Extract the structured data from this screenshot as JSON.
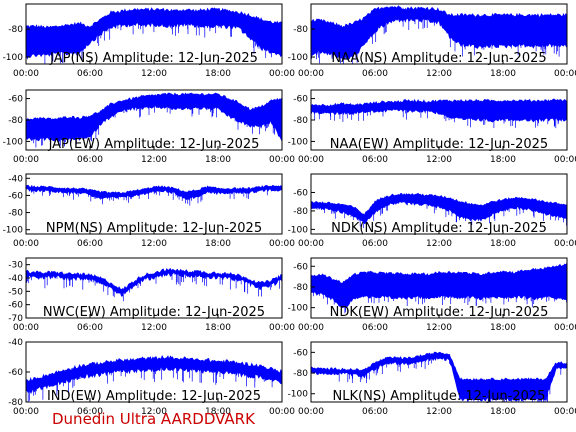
{
  "figure": {
    "footer": "Dunedin Ultra AARDDVARK",
    "colors": {
      "trace": "#0000ff",
      "axes": "#000000",
      "footer": "#cc0000"
    }
  },
  "chart_data": [
    {
      "type": "line",
      "title": "JAP(NS) Amplitude: 12-Jun-2025",
      "x_ticks": [
        "00:00",
        "06:00",
        "12:00",
        "18:00",
        "00:00"
      ],
      "y_ticks": [
        -80,
        -100
      ],
      "ylim": [
        -105,
        -62
      ],
      "series": [
        {
          "x_hours": [
            0,
            1,
            2,
            3,
            4,
            5,
            6,
            7,
            8,
            9,
            10,
            11,
            12,
            13,
            14,
            15,
            16,
            17,
            18,
            19,
            20,
            21,
            22,
            23,
            24
          ],
          "upper": [
            -78,
            -78,
            -79,
            -78,
            -77,
            -76,
            -78,
            -73,
            -68,
            -67,
            -66,
            -66,
            -66,
            -66,
            -67,
            -66,
            -67,
            -66,
            -66,
            -67,
            -68,
            -70,
            -73,
            -75,
            -76
          ],
          "lower": [
            -98,
            -97,
            -97,
            -96,
            -96,
            -95,
            -88,
            -82,
            -77,
            -76,
            -75,
            -76,
            -75,
            -76,
            -76,
            -75,
            -76,
            -77,
            -76,
            -77,
            -78,
            -85,
            -92,
            -95,
            -97
          ]
        }
      ]
    },
    {
      "type": "line",
      "title": "NAA(NS) Amplitude: 12-Jun-2025",
      "x_ticks": [
        "00:00",
        "06:00",
        "12:00",
        "18:00",
        "00:00"
      ],
      "y_ticks": [
        -80,
        -100
      ],
      "ylim": [
        -105,
        -62
      ],
      "series": [
        {
          "x_hours": [
            0,
            1,
            2,
            3,
            4,
            5,
            6,
            7,
            8,
            9,
            10,
            11,
            12,
            13,
            14,
            15,
            16,
            17,
            18,
            19,
            20,
            21,
            22,
            23,
            24
          ],
          "upper": [
            -74,
            -74,
            -76,
            -78,
            -76,
            -72,
            -66,
            -64,
            -64,
            -65,
            -65,
            -65,
            -66,
            -70,
            -70,
            -70,
            -70,
            -70,
            -70,
            -70,
            -70,
            -70,
            -70,
            -70,
            -70
          ],
          "lower": [
            -96,
            -95,
            -96,
            -100,
            -98,
            -90,
            -80,
            -75,
            -72,
            -72,
            -72,
            -73,
            -74,
            -84,
            -90,
            -90,
            -92,
            -90,
            -91,
            -90,
            -90,
            -91,
            -90,
            -90,
            -91
          ]
        }
      ]
    },
    {
      "type": "line",
      "title": "JAP(EW) Amplitude: 12-Jun-2025",
      "x_ticks": [
        "00:00",
        "06:00",
        "12:00",
        "18:00",
        "00:00"
      ],
      "y_ticks": [
        -60,
        -80,
        -100
      ],
      "ylim": [
        -108,
        -52
      ],
      "series": [
        {
          "x_hours": [
            0,
            1,
            2,
            3,
            4,
            5,
            6,
            7,
            8,
            9,
            10,
            11,
            12,
            13,
            14,
            15,
            16,
            17,
            18,
            19,
            20,
            21,
            22,
            23,
            24
          ],
          "upper": [
            -80,
            -78,
            -79,
            -79,
            -77,
            -78,
            -76,
            -72,
            -65,
            -62,
            -60,
            -58,
            -57,
            -56,
            -56,
            -56,
            -56,
            -56,
            -56,
            -60,
            -64,
            -70,
            -68,
            -62,
            -60
          ],
          "lower": [
            -96,
            -97,
            -96,
            -98,
            -96,
            -96,
            -95,
            -82,
            -75,
            -70,
            -68,
            -68,
            -66,
            -67,
            -68,
            -68,
            -67,
            -68,
            -68,
            -75,
            -80,
            -84,
            -85,
            -80,
            -98
          ]
        }
      ]
    },
    {
      "type": "line",
      "title": "NAA(EW) Amplitude: 12-Jun-2025",
      "x_ticks": [
        "00:00",
        "06:00",
        "12:00",
        "18:00",
        "00:00"
      ],
      "y_ticks": [
        -60,
        -80,
        -100
      ],
      "ylim": [
        -108,
        -52
      ],
      "series": [
        {
          "x_hours": [
            0,
            1,
            2,
            3,
            4,
            5,
            6,
            7,
            8,
            9,
            10,
            11,
            12,
            13,
            14,
            15,
            16,
            17,
            18,
            19,
            20,
            21,
            22,
            23,
            24
          ],
          "upper": [
            -66,
            -66,
            -66,
            -65,
            -66,
            -65,
            -64,
            -63,
            -63,
            -62,
            -62,
            -63,
            -62,
            -62,
            -62,
            -62,
            -62,
            -62,
            -62,
            -62,
            -62,
            -62,
            -62,
            -61,
            -62
          ],
          "lower": [
            -72,
            -72,
            -72,
            -72,
            -72,
            -71,
            -70,
            -70,
            -69,
            -70,
            -70,
            -70,
            -72,
            -76,
            -78,
            -78,
            -78,
            -79,
            -78,
            -78,
            -78,
            -79,
            -78,
            -78,
            -78
          ]
        }
      ]
    },
    {
      "type": "line",
      "title": "NPM(NS) Amplitude: 12-Jun-2025",
      "x_ticks": [
        "00:00",
        "06:00",
        "12:00",
        "18:00",
        "00:00"
      ],
      "y_ticks": [
        -40,
        -60,
        -80,
        -100
      ],
      "ylim": [
        -105,
        -35
      ],
      "series": [
        {
          "x_hours": [
            0,
            1,
            2,
            3,
            4,
            5,
            6,
            7,
            8,
            9,
            10,
            11,
            12,
            13,
            14,
            15,
            16,
            17,
            18,
            19,
            20,
            21,
            22,
            23,
            24
          ],
          "upper": [
            -49,
            -50,
            -50,
            -51,
            -52,
            -52,
            -54,
            -56,
            -57,
            -57,
            -55,
            -53,
            -50,
            -50,
            -52,
            -56,
            -54,
            -50,
            -52,
            -52,
            -52,
            -52,
            -50,
            -49,
            -49
          ],
          "lower": [
            -52,
            -53,
            -53,
            -54,
            -55,
            -55,
            -58,
            -62,
            -61,
            -61,
            -59,
            -57,
            -54,
            -53,
            -56,
            -63,
            -60,
            -55,
            -56,
            -56,
            -55,
            -55,
            -53,
            -52,
            -52
          ]
        }
      ]
    },
    {
      "type": "line",
      "title": "NDK(NS) Amplitude: 12-Jun-2025",
      "x_ticks": [
        "00:00",
        "06:00",
        "12:00",
        "18:00",
        "00:00"
      ],
      "y_ticks": [
        -60,
        -80,
        -100
      ],
      "ylim": [
        -105,
        -40
      ],
      "series": [
        {
          "x_hours": [
            0,
            1,
            2,
            3,
            4,
            5,
            6,
            7,
            8,
            9,
            10,
            11,
            12,
            13,
            14,
            15,
            16,
            17,
            18,
            19,
            20,
            21,
            22,
            23,
            24
          ],
          "upper": [
            -70,
            -71,
            -72,
            -73,
            -76,
            -84,
            -70,
            -64,
            -62,
            -62,
            -62,
            -63,
            -64,
            -66,
            -70,
            -72,
            -74,
            -70,
            -68,
            -66,
            -66,
            -68,
            -70,
            -72,
            -74
          ],
          "lower": [
            -75,
            -76,
            -78,
            -80,
            -84,
            -92,
            -80,
            -72,
            -70,
            -70,
            -71,
            -72,
            -74,
            -78,
            -85,
            -88,
            -88,
            -82,
            -78,
            -75,
            -76,
            -78,
            -82,
            -84,
            -88
          ]
        }
      ]
    },
    {
      "type": "line",
      "title": "NWC(EW) Amplitude: 12-Jun-2025",
      "x_ticks": [
        "00:00",
        "06:00",
        "12:00",
        "18:00",
        "00:00"
      ],
      "y_ticks": [
        -30,
        -40,
        -50,
        -60,
        -70
      ],
      "ylim": [
        -70,
        -25
      ],
      "series": [
        {
          "x_hours": [
            0,
            1,
            2,
            3,
            4,
            5,
            6,
            7,
            8,
            9,
            10,
            11,
            12,
            13,
            14,
            15,
            16,
            17,
            18,
            19,
            20,
            21,
            22,
            23,
            24
          ],
          "upper": [
            -35,
            -36,
            -36,
            -36,
            -37,
            -37,
            -38,
            -40,
            -44,
            -49,
            -43,
            -38,
            -36,
            -34,
            -34,
            -35,
            -35,
            -36,
            -36,
            -37,
            -38,
            -41,
            -44,
            -42,
            -38
          ],
          "lower": [
            -37,
            -38,
            -38,
            -38,
            -39,
            -39,
            -40,
            -42,
            -46,
            -51,
            -45,
            -40,
            -38,
            -36,
            -36,
            -37,
            -37,
            -38,
            -38,
            -39,
            -40,
            -43,
            -46,
            -44,
            -40
          ]
        }
      ]
    },
    {
      "type": "line",
      "title": "NDK(EW) Amplitude: 12-Jun-2025",
      "x_ticks": [
        "00:00",
        "06:00",
        "12:00",
        "18:00",
        "00:00"
      ],
      "y_ticks": [
        -60,
        -80,
        -100
      ],
      "ylim": [
        -110,
        -52
      ],
      "series": [
        {
          "x_hours": [
            0,
            1,
            2,
            3,
            4,
            5,
            6,
            7,
            8,
            9,
            10,
            11,
            12,
            13,
            14,
            15,
            16,
            17,
            18,
            19,
            20,
            21,
            22,
            23,
            24
          ],
          "upper": [
            -70,
            -68,
            -72,
            -76,
            -68,
            -66,
            -66,
            -67,
            -67,
            -68,
            -67,
            -68,
            -66,
            -66,
            -66,
            -67,
            -68,
            -66,
            -65,
            -66,
            -64,
            -63,
            -62,
            -60,
            -58
          ],
          "lower": [
            -84,
            -86,
            -90,
            -100,
            -90,
            -88,
            -88,
            -88,
            -90,
            -89,
            -88,
            -90,
            -88,
            -88,
            -89,
            -88,
            -90,
            -88,
            -89,
            -88,
            -88,
            -90,
            -88,
            -89,
            -90
          ]
        }
      ]
    },
    {
      "type": "line",
      "title": "IND(EW) Amplitude: 12-Jun-2025",
      "x_ticks": [
        "00:00",
        "06:00",
        "12:00",
        "18:00",
        "00:00"
      ],
      "y_ticks": [
        -40,
        -60,
        -80
      ],
      "ylim": [
        -80,
        -40
      ],
      "series": [
        {
          "x_hours": [
            0,
            1,
            2,
            3,
            4,
            5,
            6,
            7,
            8,
            9,
            10,
            11,
            12,
            13,
            14,
            15,
            16,
            17,
            18,
            19,
            20,
            21,
            22,
            23,
            24
          ],
          "upper": [
            -66,
            -64,
            -62,
            -60,
            -58,
            -56,
            -55,
            -54,
            -53,
            -52,
            -52,
            -51,
            -51,
            -50,
            -51,
            -51,
            -52,
            -52,
            -53,
            -53,
            -54,
            -55,
            -56,
            -58,
            -60
          ],
          "lower": [
            -72,
            -70,
            -68,
            -66,
            -64,
            -62,
            -61,
            -60,
            -59,
            -58,
            -58,
            -57,
            -57,
            -56,
            -57,
            -57,
            -58,
            -58,
            -59,
            -59,
            -60,
            -61,
            -62,
            -64,
            -66
          ]
        }
      ]
    },
    {
      "type": "line",
      "title": "NLK(NS) Amplitude: 12-Jun-2025",
      "x_ticks": [
        "00:00",
        "06:00",
        "12:00",
        "18:00",
        "00:00"
      ],
      "y_ticks": [
        -60,
        -80,
        -100
      ],
      "ylim": [
        -108,
        -50
      ],
      "series": [
        {
          "x_hours": [
            0,
            1,
            2,
            3,
            4,
            5,
            6,
            7,
            8,
            9,
            10,
            11,
            12,
            13,
            14,
            15,
            16,
            17,
            18,
            19,
            20,
            21,
            22,
            23,
            24
          ],
          "upper": [
            -75,
            -76,
            -76,
            -76,
            -77,
            -77,
            -70,
            -66,
            -65,
            -66,
            -64,
            -62,
            -60,
            -62,
            -86,
            -86,
            -86,
            -86,
            -86,
            -86,
            -86,
            -86,
            -86,
            -70,
            -70
          ],
          "lower": [
            -78,
            -79,
            -79,
            -79,
            -80,
            -82,
            -74,
            -70,
            -69,
            -70,
            -68,
            -66,
            -64,
            -66,
            -104,
            -104,
            -104,
            -104,
            -104,
            -104,
            -104,
            -104,
            -104,
            -74,
            -74
          ]
        }
      ]
    }
  ]
}
